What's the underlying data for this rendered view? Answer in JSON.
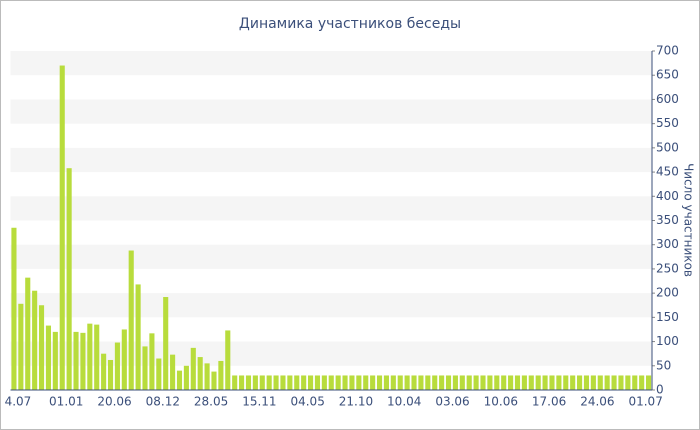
{
  "chart_data": {
    "type": "bar",
    "title": "Динамика участников беседы",
    "y_label": "Число участников",
    "categories": [
      "4.07",
      null,
      null,
      null,
      null,
      null,
      null,
      "01.01",
      null,
      null,
      null,
      null,
      null,
      null,
      "20.06",
      null,
      null,
      null,
      null,
      null,
      null,
      "08.12",
      null,
      null,
      null,
      null,
      null,
      null,
      "28.05",
      null,
      null,
      null,
      null,
      null,
      null,
      "15.11",
      null,
      null,
      null,
      null,
      null,
      null,
      "04.05",
      null,
      null,
      null,
      null,
      null,
      null,
      "21.10",
      null,
      null,
      null,
      null,
      null,
      null,
      "10.04",
      null,
      null,
      null,
      null,
      null,
      null,
      "03.06",
      null,
      null,
      null,
      null,
      null,
      null,
      "10.06",
      null,
      null,
      null,
      null,
      null,
      null,
      "17.06",
      null,
      null,
      null,
      null,
      null,
      null,
      "24.06",
      null,
      null,
      null,
      null,
      null,
      null,
      "01.07",
      null
    ],
    "values": [
      335,
      178,
      232,
      205,
      175,
      133,
      120,
      670,
      458,
      120,
      118,
      137,
      135,
      75,
      62,
      98,
      125,
      288,
      218,
      90,
      117,
      65,
      192,
      73,
      40,
      50,
      87,
      68,
      55,
      38,
      60,
      123,
      30,
      30,
      30,
      30,
      30,
      30,
      30,
      30,
      30,
      30,
      30,
      30,
      30,
      30,
      30,
      30,
      30,
      30,
      30,
      30,
      30,
      30,
      30,
      30,
      30,
      30,
      30,
      30,
      30,
      30,
      30,
      30,
      30,
      30,
      30,
      30,
      30,
      30,
      30,
      30,
      30,
      30,
      30,
      30,
      30,
      30,
      30,
      30,
      30,
      30,
      30,
      30,
      30,
      30,
      30,
      30,
      30,
      30,
      30,
      30,
      30
    ],
    "color": "#b8dc3c",
    "ylim": [
      0,
      700
    ],
    "yticks": [
      0,
      50,
      100,
      150,
      200,
      250,
      300,
      350,
      400,
      450,
      500,
      550,
      600,
      650,
      700
    ],
    "grid": true,
    "y_axis_side": "right"
  }
}
